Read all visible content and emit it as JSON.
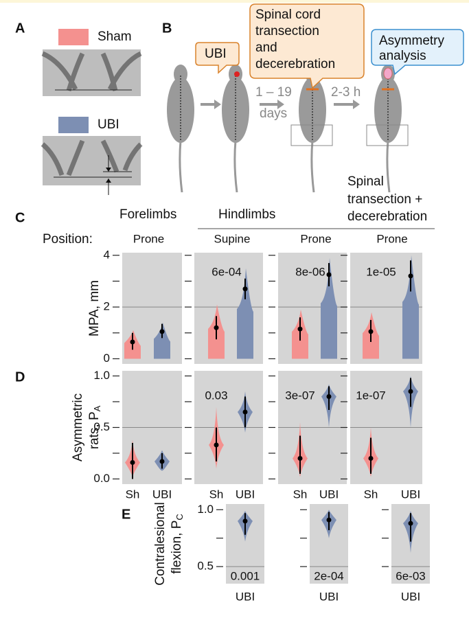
{
  "panel_labels": [
    "A",
    "B",
    "C",
    "D",
    "E"
  ],
  "panel_a": {
    "sham_label": "Sham",
    "ubi_label": "UBI"
  },
  "panel_b": {
    "ubi": "UBI",
    "transection": [
      "Spinal cord",
      "transection",
      "and",
      "decerebration"
    ],
    "asymmetry": [
      "Asymmetry",
      "analysis"
    ],
    "interval1": [
      "1 – 19",
      "days"
    ],
    "interval2": "2-3 h"
  },
  "column_headers": {
    "forelimbs": "Forelimbs",
    "hindlimbs": "Hindlimbs",
    "spinal": [
      "Spinal",
      "transection +",
      "decerebration"
    ]
  },
  "position_label": "Position:",
  "positions": [
    "Prone",
    "Supine",
    "Prone",
    "Prone"
  ],
  "colors": {
    "sham": "#f4918f",
    "ubi": "#7d8fb3",
    "panel": "#d5d5d5"
  },
  "panel_c": {
    "ylabel": [
      "MPA, mm"
    ],
    "ylim": [
      -0.2,
      4.1
    ],
    "yticks": [
      0,
      2,
      4
    ],
    "minor": [
      1,
      3
    ],
    "refline": 2,
    "groups": [
      {
        "sham": {
          "median": 0.65,
          "lo": 0.35,
          "hi": 1.0,
          "min": 0,
          "max": 1.1
        },
        "ubi": {
          "median": 1.05,
          "lo": 0.8,
          "hi": 1.35,
          "min": 0,
          "max": 1.4
        }
      },
      {
        "sham": {
          "median": 1.2,
          "lo": 0.75,
          "hi": 1.65,
          "min": 0,
          "max": 2.1
        },
        "ubi": {
          "median": 2.7,
          "lo": 2.3,
          "hi": 3.1,
          "min": 0,
          "max": 3.5
        },
        "p": "6e-04"
      },
      {
        "sham": {
          "median": 1.15,
          "lo": 0.7,
          "hi": 1.6,
          "min": 0,
          "max": 1.9
        },
        "ubi": {
          "median": 3.25,
          "lo": 2.8,
          "hi": 3.7,
          "min": 0,
          "max": 3.9
        },
        "p": "8e-06"
      },
      {
        "sham": {
          "median": 1.05,
          "lo": 0.65,
          "hi": 1.5,
          "min": 0,
          "max": 1.8
        },
        "ubi": {
          "median": 3.2,
          "lo": 2.6,
          "hi": 3.8,
          "min": 0,
          "max": 4.0
        },
        "p": "1e-05"
      }
    ]
  },
  "panel_d": {
    "ylabel": [
      "Asymmetric",
      "rats, P"
    ],
    "ylabel_sub": "A",
    "ylim": [
      -0.05,
      1.05
    ],
    "yticks": [
      {
        "value": 0,
        "label": "0.0"
      },
      0.5,
      {
        "value": 1,
        "label": "1.0"
      }
    ],
    "minor": [
      0.25,
      0.75
    ],
    "refline": 0.5,
    "xlabels": [
      "Sh",
      "UBI"
    ],
    "groups": [
      {
        "sham": {
          "median": 0.16,
          "lo": 0.0,
          "hi": 0.35,
          "min": 0.02,
          "max": 0.38
        },
        "ubi": {
          "median": 0.17,
          "lo": 0.1,
          "hi": 0.25,
          "min": 0.08,
          "max": 0.28
        }
      },
      {
        "sham": {
          "median": 0.33,
          "lo": 0.17,
          "hi": 0.5,
          "min": 0.1,
          "max": 0.7
        },
        "ubi": {
          "median": 0.65,
          "lo": 0.5,
          "hi": 0.8,
          "min": 0.45,
          "max": 0.85
        },
        "p": "0.03"
      },
      {
        "sham": {
          "median": 0.2,
          "lo": 0.05,
          "hi": 0.42,
          "min": 0.02,
          "max": 0.55
        },
        "ubi": {
          "median": 0.8,
          "lo": 0.67,
          "hi": 0.9,
          "min": 0.5,
          "max": 0.92
        },
        "p": "3e-07"
      },
      {
        "sham": {
          "median": 0.2,
          "lo": 0.05,
          "hi": 0.4,
          "min": 0.02,
          "max": 0.5
        },
        "ubi": {
          "median": 0.85,
          "lo": 0.7,
          "hi": 0.98,
          "min": 0.5,
          "max": 1.0
        },
        "p": "1e-07"
      }
    ]
  },
  "panel_e": {
    "ylabel": [
      "Contralesional",
      "flexion, P"
    ],
    "ylabel_sub": "C",
    "ylim": [
      0.35,
      1.05
    ],
    "yticks": [
      0.5,
      {
        "value": 1,
        "label": "1.0"
      }
    ],
    "minor": [
      0.75
    ],
    "refline": 0.5,
    "xlabel": "UBI",
    "groups": [
      {
        "ubi": {
          "median": 0.9,
          "lo": 0.78,
          "hi": 0.97,
          "min": 0.72,
          "max": 0.99
        },
        "p": "0.001"
      },
      {
        "ubi": {
          "median": 0.91,
          "lo": 0.82,
          "hi": 0.98,
          "min": 0.75,
          "max": 1.0
        },
        "p": "2e-04"
      },
      {
        "ubi": {
          "median": 0.88,
          "lo": 0.72,
          "hi": 0.97,
          "min": 0.62,
          "max": 0.99
        },
        "p": "6e-03"
      }
    ]
  }
}
